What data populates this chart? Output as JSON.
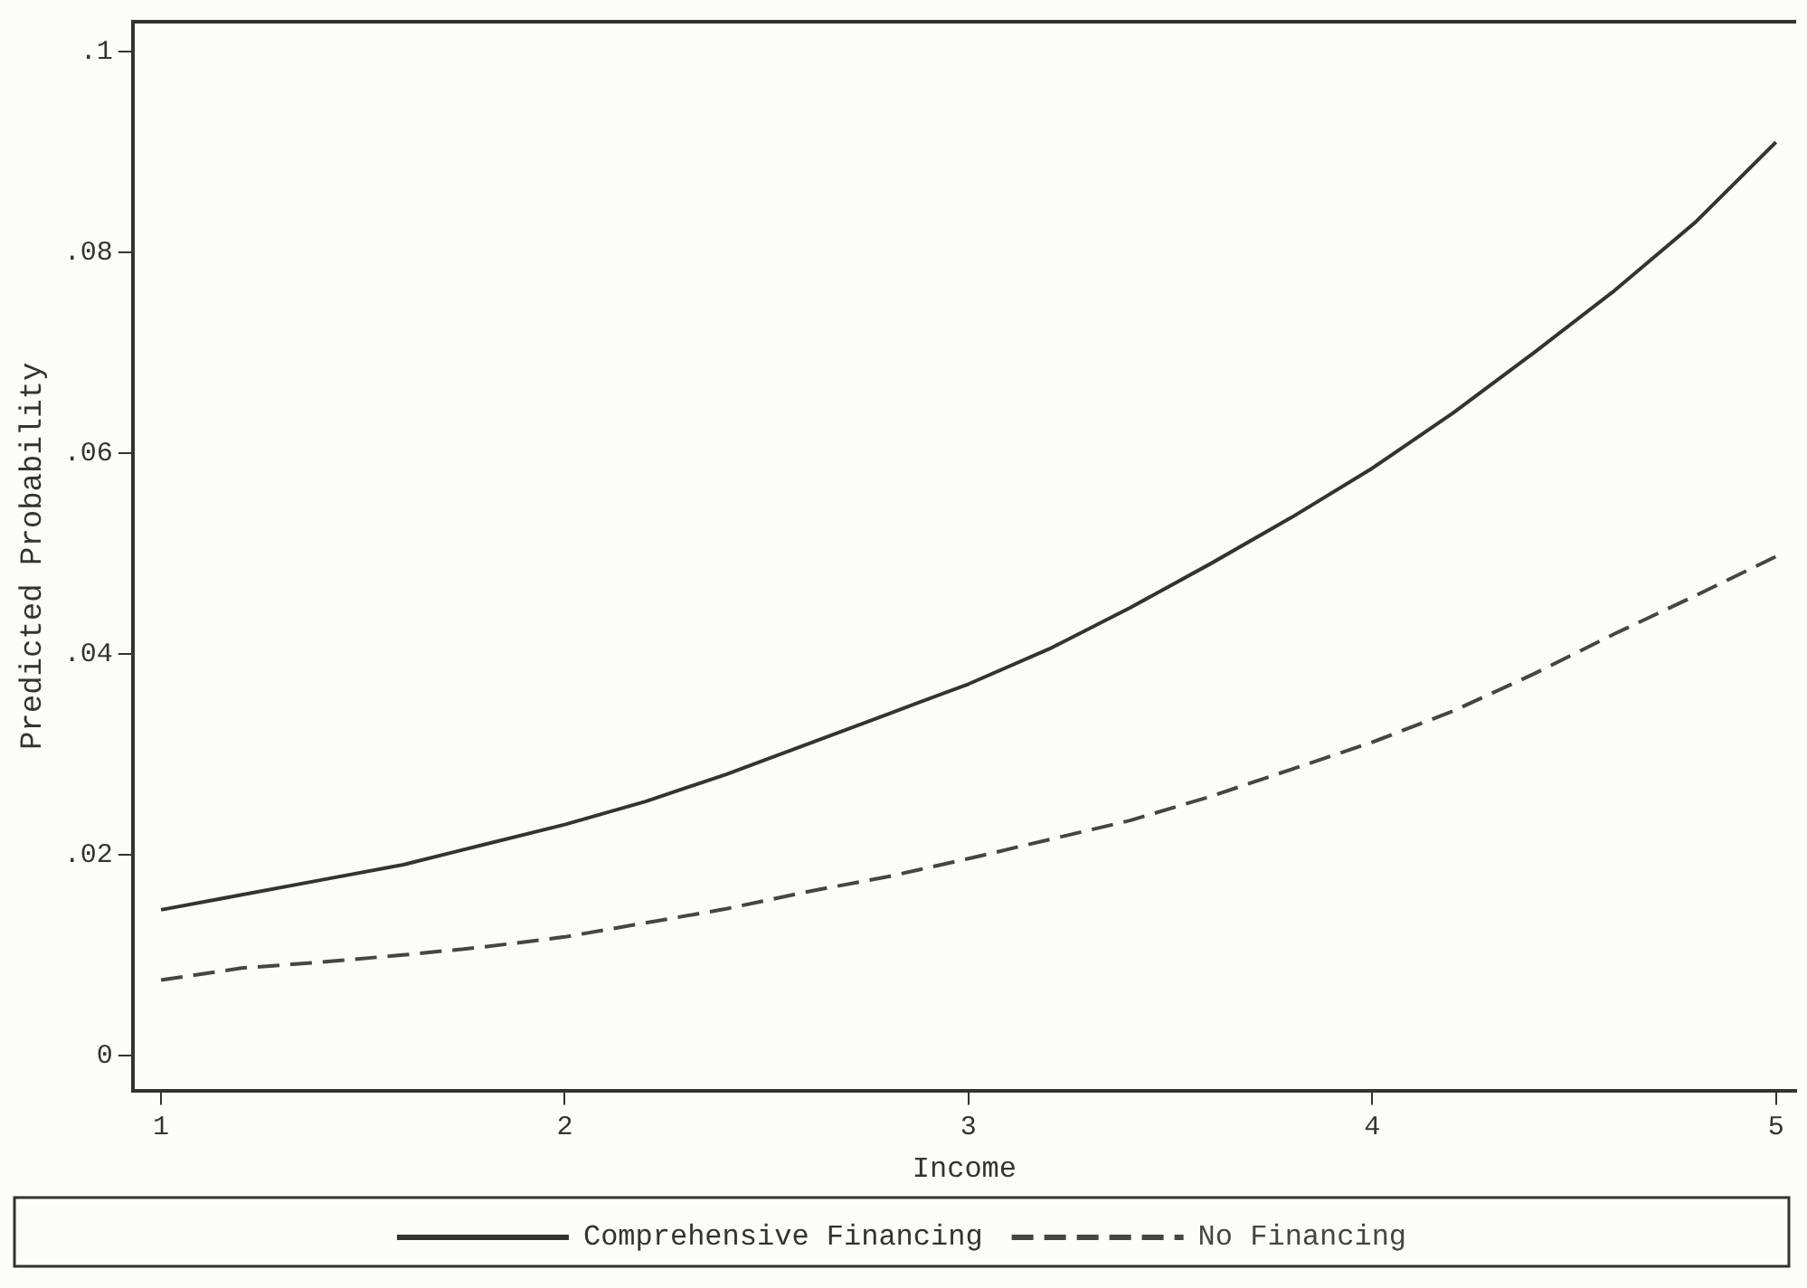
{
  "chart_data": {
    "type": "line",
    "xlabel": "Income",
    "ylabel": "Predicted Probability",
    "x": [
      1,
      1.2,
      1.4,
      1.6,
      1.8,
      2,
      2.2,
      2.4,
      2.6,
      2.8,
      3,
      3.2,
      3.4,
      3.6,
      3.8,
      4,
      4.2,
      4.4,
      4.6,
      4.8,
      5
    ],
    "series": [
      {
        "name": "Comprehensive Financing",
        "color": "#333333",
        "line_style": "solid",
        "values": [
          0.0145,
          0.016,
          0.0175,
          0.019,
          0.021,
          0.023,
          0.0253,
          0.028,
          0.031,
          0.034,
          0.037,
          0.0405,
          0.0446,
          0.049,
          0.0536,
          0.0585,
          0.064,
          0.07,
          0.0762,
          0.083,
          0.091
        ]
      },
      {
        "name": "No Financing",
        "color": "#454545",
        "line_style": "dashed",
        "values": [
          0.0075,
          0.0087,
          0.0093,
          0.01,
          0.0108,
          0.0118,
          0.0132,
          0.0146,
          0.0163,
          0.0178,
          0.0196,
          0.0215,
          0.0234,
          0.0258,
          0.0285,
          0.0312,
          0.0343,
          0.038,
          0.042,
          0.0458,
          0.0497
        ]
      }
    ],
    "xlim": [
      0.93,
      5.05
    ],
    "xticks": [
      1,
      2,
      3,
      4,
      5
    ],
    "ylim": [
      -0.0035,
      0.103
    ],
    "yticks": [
      0,
      {
        "value": 0.02,
        "label": ".02"
      },
      {
        "value": 0.04,
        "label": ".04"
      },
      {
        "value": 0.06,
        "label": ".06"
      },
      {
        "value": 0.08,
        "label": ".08"
      },
      {
        "value": 0.1,
        "label": ".1"
      }
    ],
    "grid": false,
    "legend": "bottom",
    "marker": "none"
  }
}
